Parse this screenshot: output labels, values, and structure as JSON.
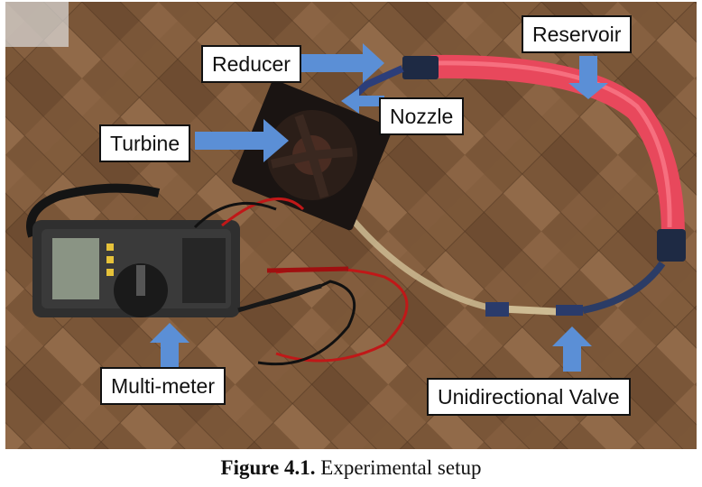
{
  "labels": {
    "reducer": "Reducer",
    "nozzle": "Nozzle",
    "turbine": "Turbine",
    "reservoir": "Reservoir",
    "multimeter": "Multi-meter",
    "valve": "Unidirectional Valve"
  },
  "caption": {
    "number": "Figure 4.1.",
    "text": "Experimental setup"
  },
  "colors": {
    "floor": "#7a5638",
    "arrow": "#5b8fd6",
    "hose": "#e8485c",
    "tube": "#cdbb93"
  }
}
